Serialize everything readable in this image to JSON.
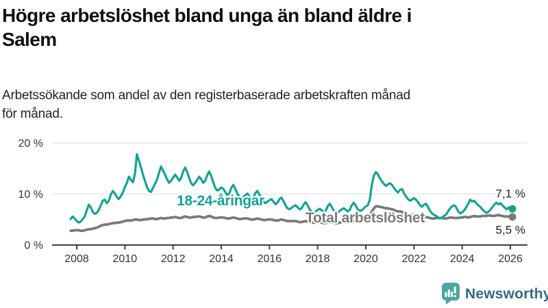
{
  "header": {
    "title_line1": "Högre arbetslöshet bland unga än bland äldre i",
    "title_line2": "Salem",
    "subtitle_line1": "Arbetssökande som andel av den registerbaserade arbetskraften månad",
    "subtitle_line2": "för månad."
  },
  "footer": {
    "brand_label": "Newsworthy"
  },
  "colors": {
    "youth_line": "#15a294",
    "total_line": "#7a7a7a",
    "axis": "#3d3d3d",
    "grid": "#dcdcdc",
    "tick_text": "#333333",
    "value_label_text": "#222222",
    "brand_text": "#2f6d7c",
    "brand_icon": "#4aa6a0"
  },
  "chart_data": {
    "type": "line",
    "unit": "%",
    "x_start": "2007-10",
    "x_interval": "monthly",
    "x_tick_labels": [
      "2008",
      "2010",
      "2012",
      "2014",
      "2016",
      "2018",
      "2020",
      "2022",
      "2024",
      "2026"
    ],
    "y_ticks": [
      {
        "label": "0 %",
        "value": 0
      },
      {
        "label": "10 %",
        "value": 10
      },
      {
        "label": "20 %",
        "value": 20
      }
    ],
    "ylim": [
      0,
      22
    ],
    "series": [
      {
        "name": "18-24-åringar",
        "color": "#15a294",
        "end_label": "7,1 %",
        "end_value": 7.1,
        "values": [
          5.1,
          5.6,
          5.2,
          4.7,
          4.4,
          4.6,
          5.1,
          5.6,
          6.8,
          7.9,
          7.4,
          6.5,
          6.1,
          6.3,
          6.9,
          7.8,
          8.7,
          8.9,
          8.2,
          8.7,
          9.9,
          10.6,
          10.1,
          9.4,
          9.0,
          9.6,
          10.3,
          11.4,
          12.2,
          13.4,
          12.8,
          12.3,
          14.0,
          17.8,
          16.5,
          15.2,
          13.8,
          12.6,
          11.4,
          10.6,
          10.4,
          11.2,
          12.0,
          12.8,
          14.2,
          15.4,
          14.6,
          13.8,
          12.9,
          12.2,
          12.6,
          13.2,
          13.8,
          13.3,
          12.6,
          13.1,
          14.4,
          15.2,
          14.3,
          13.2,
          12.1,
          11.7,
          12.2,
          12.8,
          13.4,
          12.9,
          12.2,
          12.6,
          13.7,
          14.4,
          13.5,
          12.3,
          11.2,
          10.7,
          10.9,
          11.3,
          11.0,
          10.4,
          9.8,
          10.1,
          11.2,
          11.8,
          11.0,
          10.1,
          9.4,
          9.1,
          9.4,
          9.8,
          10.1,
          9.6,
          9.0,
          9.3,
          10.2,
          10.6,
          9.9,
          9.1,
          8.5,
          8.2,
          8.5,
          8.8,
          9.0,
          8.5,
          8.0,
          8.3,
          9.0,
          9.3,
          8.6,
          7.8,
          7.2,
          7.0,
          7.3,
          7.6,
          7.8,
          7.4,
          7.0,
          7.2,
          7.9,
          8.4,
          7.8,
          7.0,
          6.5,
          6.3,
          6.6,
          6.9,
          7.1,
          6.8,
          6.4,
          6.7,
          7.6,
          8.1,
          7.5,
          6.8,
          6.4,
          6.3,
          6.7,
          7.0,
          7.2,
          6.9,
          6.6,
          6.9,
          7.8,
          8.3,
          7.7,
          7.0,
          6.7,
          6.8,
          7.2,
          7.6,
          7.8,
          8.9,
          11.8,
          13.6,
          14.3,
          13.9,
          13.1,
          12.5,
          12.0,
          11.6,
          11.9,
          12.1,
          11.8,
          11.2,
          10.7,
          10.3,
          10.8,
          11.0,
          10.2,
          9.5,
          9.0,
          8.7,
          8.9,
          9.2,
          8.9,
          8.4,
          7.8,
          7.5,
          7.9,
          8.1,
          7.4,
          6.7,
          6.2,
          5.9,
          5.7,
          5.4,
          5.2,
          5.4,
          5.7,
          6.0,
          6.6,
          7.2,
          7.6,
          7.8,
          7.4,
          6.6,
          6.2,
          6.4,
          6.8,
          7.4,
          8.1,
          8.9,
          8.5,
          8.7,
          8.2,
          7.8,
          7.5,
          7.0,
          6.6,
          6.3,
          6.5,
          6.9,
          7.4,
          7.9,
          8.3,
          8.0,
          8.2,
          7.8,
          7.4,
          7.0,
          7.3,
          7.4,
          7.1
        ]
      },
      {
        "name": "Total arbetslöshet",
        "color": "#7a7a7a",
        "end_label": "5,5 %",
        "end_value": 5.5,
        "values": [
          2.8,
          2.8,
          2.9,
          2.9,
          2.9,
          2.8,
          2.8,
          2.9,
          3.0,
          3.1,
          3.1,
          3.2,
          3.3,
          3.4,
          3.6,
          3.8,
          3.9,
          4.0,
          4.0,
          4.1,
          4.2,
          4.3,
          4.3,
          4.4,
          4.4,
          4.5,
          4.6,
          4.7,
          4.8,
          4.8,
          4.8,
          4.9,
          5.0,
          5.0,
          4.9,
          4.9,
          5.0,
          5.0,
          5.1,
          5.1,
          5.2,
          5.2,
          5.1,
          5.1,
          5.2,
          5.3,
          5.2,
          5.2,
          5.3,
          5.3,
          5.4,
          5.4,
          5.5,
          5.4,
          5.3,
          5.3,
          5.5,
          5.6,
          5.5,
          5.4,
          5.4,
          5.5,
          5.5,
          5.6,
          5.6,
          5.5,
          5.4,
          5.4,
          5.6,
          5.7,
          5.6,
          5.4,
          5.3,
          5.3,
          5.4,
          5.4,
          5.4,
          5.3,
          5.2,
          5.2,
          5.3,
          5.4,
          5.3,
          5.2,
          5.1,
          5.1,
          5.2,
          5.2,
          5.2,
          5.1,
          5.0,
          5.0,
          5.1,
          5.2,
          5.1,
          5.0,
          4.9,
          4.9,
          5.0,
          5.0,
          5.0,
          4.9,
          4.8,
          4.8,
          4.9,
          5.0,
          4.9,
          4.8,
          4.7,
          4.7,
          4.7,
          4.7,
          4.7,
          4.6,
          4.5,
          4.5,
          4.6,
          4.7,
          4.6,
          4.5,
          4.4,
          4.4,
          4.4,
          4.4,
          4.5,
          4.4,
          4.3,
          4.3,
          4.4,
          4.5,
          4.4,
          4.4,
          4.3,
          4.3,
          4.4,
          4.5,
          4.5,
          4.5,
          4.4,
          4.5,
          4.6,
          4.7,
          4.7,
          4.6,
          4.6,
          4.7,
          4.8,
          5.0,
          5.1,
          5.6,
          6.6,
          7.2,
          7.6,
          7.6,
          7.5,
          7.4,
          7.3,
          7.2,
          7.2,
          7.1,
          7.0,
          6.9,
          6.7,
          6.6,
          6.6,
          6.5,
          6.3,
          6.1,
          6.0,
          5.9,
          5.9,
          5.8,
          5.8,
          5.6,
          5.5,
          5.4,
          5.5,
          5.5,
          5.4,
          5.3,
          5.2,
          5.2,
          5.3,
          5.3,
          5.3,
          5.3,
          5.2,
          5.2,
          5.3,
          5.4,
          5.4,
          5.3,
          5.3,
          5.3,
          5.4,
          5.4,
          5.5,
          5.5,
          5.4,
          5.5,
          5.6,
          5.7,
          5.6,
          5.6,
          5.6,
          5.7,
          5.7,
          5.7,
          5.8,
          5.8,
          5.7,
          5.7,
          5.8,
          5.9,
          5.8,
          5.7,
          5.6,
          5.6,
          5.6,
          5.5,
          5.5
        ]
      }
    ]
  }
}
